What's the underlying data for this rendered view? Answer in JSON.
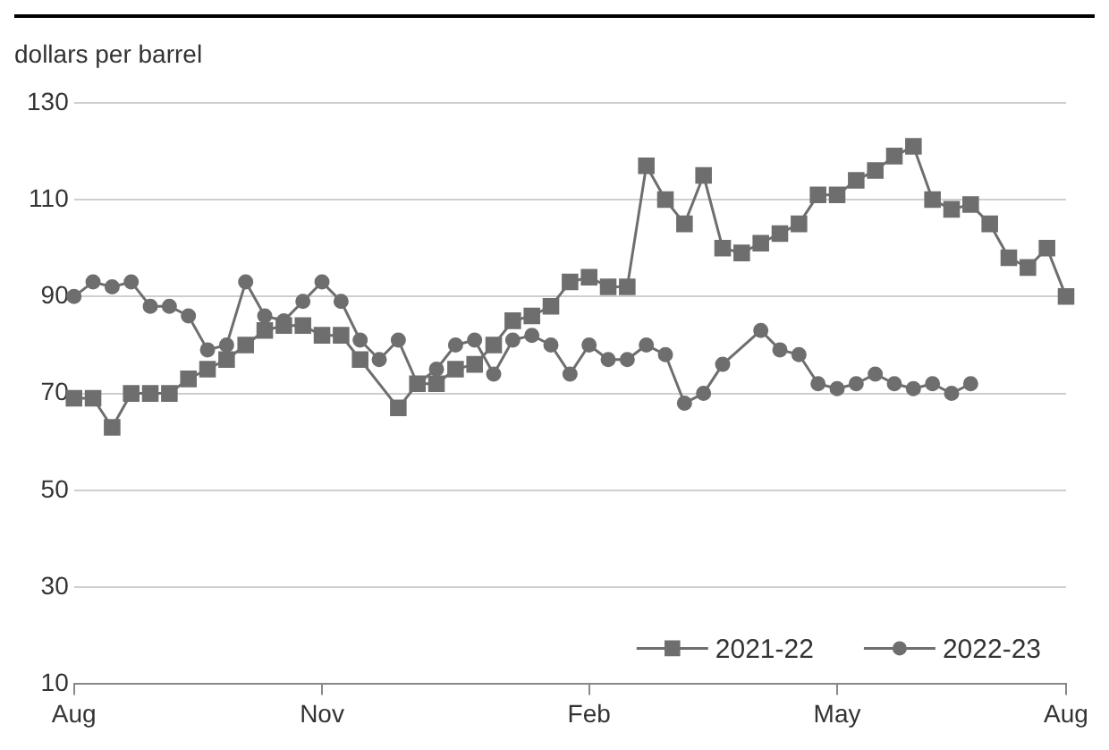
{
  "chart_data": {
    "type": "line",
    "ylabel": "dollars per barrel",
    "categories": [
      "Aug",
      null,
      null,
      null,
      null,
      null,
      null,
      null,
      null,
      null,
      null,
      null,
      null,
      "Nov",
      null,
      null,
      null,
      null,
      null,
      null,
      null,
      null,
      null,
      null,
      null,
      null,
      null,
      "Feb",
      null,
      null,
      null,
      null,
      null,
      null,
      null,
      null,
      null,
      null,
      null,
      null,
      "May",
      null,
      null,
      null,
      null,
      null,
      null,
      null,
      null,
      null,
      null,
      null,
      "Aug"
    ],
    "ylim": [
      10,
      130
    ],
    "yticks": [
      10,
      30,
      50,
      70,
      90,
      110,
      130
    ],
    "grid": "y",
    "legend": "bottom right",
    "series": [
      {
        "name": "2021-22",
        "color": "#6e6e6e",
        "marker": "square",
        "values": [
          69,
          69,
          63,
          70,
          70,
          70,
          73,
          75,
          77,
          80,
          83,
          84,
          84,
          82,
          82,
          77,
          null,
          67,
          72,
          72,
          75,
          76,
          80,
          85,
          86,
          88,
          93,
          94,
          92,
          92,
          117,
          110,
          105,
          115,
          100,
          99,
          101,
          103,
          105,
          111,
          111,
          114,
          116,
          119,
          121,
          110,
          108,
          109,
          105,
          98,
          96,
          100,
          90
        ]
      },
      {
        "name": "2022-23",
        "color": "#6e6e6e",
        "marker": "circle",
        "values": [
          90,
          93,
          92,
          93,
          88,
          88,
          86,
          79,
          80,
          93,
          86,
          85,
          89,
          93,
          89,
          81,
          77,
          81,
          72,
          75,
          80,
          81,
          74,
          81,
          82,
          80,
          74,
          80,
          77,
          77,
          80,
          78,
          68,
          70,
          76,
          null,
          83,
          79,
          78,
          72,
          71,
          72,
          74,
          72,
          71,
          72,
          70,
          72,
          null,
          null,
          null,
          null,
          null
        ]
      }
    ]
  }
}
